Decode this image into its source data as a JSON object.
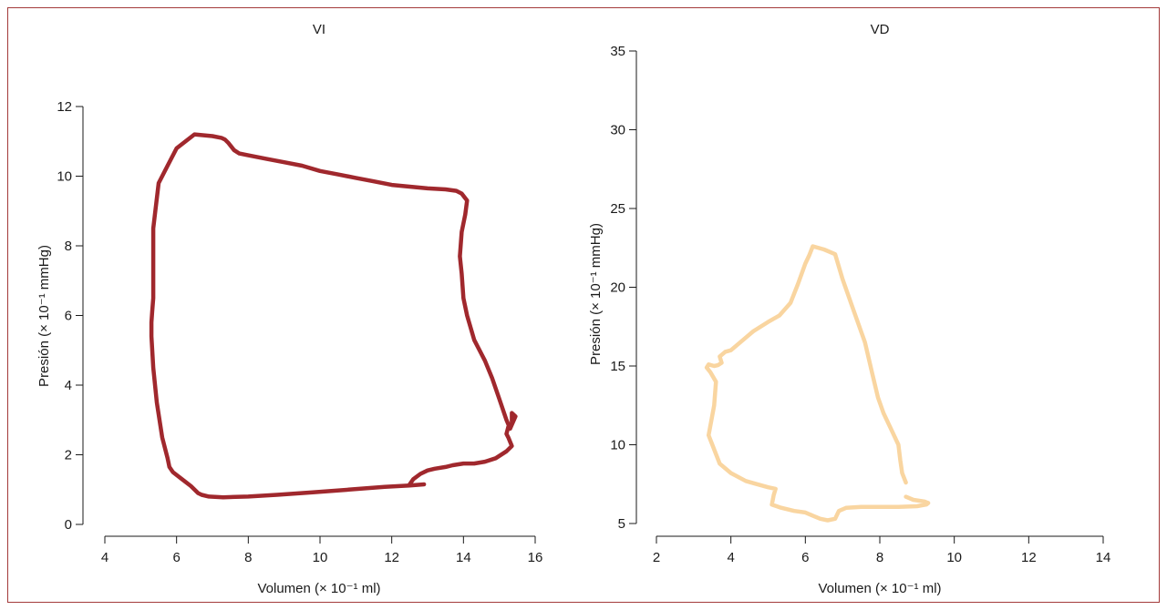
{
  "chart_data": [
    {
      "type": "line",
      "title": "VI",
      "xlabel": "Volumen (× 10⁻¹ ml)",
      "ylabel": "Presión (× 10⁻¹ mmHg)",
      "xlim": [
        4,
        16
      ],
      "ylim": [
        0,
        12
      ],
      "xticks": [
        4,
        6,
        8,
        10,
        12,
        14,
        16
      ],
      "yticks": [
        0,
        2,
        4,
        6,
        8,
        10,
        12
      ],
      "color": "#a0282d",
      "series": [
        {
          "x": [
            12.9,
            12.5,
            11.8,
            10.8,
            9.8,
            8.8,
            8.0,
            7.3,
            6.9,
            6.7,
            6.6,
            6.4,
            6.15,
            5.9,
            5.8,
            5.75,
            5.6,
            5.45,
            5.35,
            5.3,
            5.3,
            5.32,
            5.35,
            5.35,
            5.5,
            5.75,
            6.0,
            6.5,
            7.0,
            7.25,
            7.35,
            7.45,
            7.6,
            7.75,
            8.0,
            8.5,
            9.0,
            9.5,
            10.0,
            10.5,
            11.0,
            11.5,
            12.0,
            12.5,
            13.0,
            13.5,
            13.8,
            13.95,
            14.1,
            14.05,
            13.95,
            13.9,
            13.95,
            14.0,
            14.1,
            14.3,
            14.6,
            14.8,
            15.0,
            15.2,
            15.3,
            15.45,
            15.35,
            15.35,
            15.25,
            15.2,
            15.25,
            15.35,
            15.2,
            14.9,
            14.6,
            14.3,
            14.0,
            13.7,
            13.5,
            13.2,
            13.0,
            12.8,
            12.6,
            12.5
          ],
          "y": [
            1.15,
            1.12,
            1.08,
            1.0,
            0.92,
            0.85,
            0.8,
            0.78,
            0.8,
            0.85,
            0.9,
            1.1,
            1.3,
            1.5,
            1.65,
            1.9,
            2.5,
            3.5,
            4.5,
            5.4,
            5.8,
            6.1,
            6.5,
            8.5,
            9.8,
            10.3,
            10.8,
            11.2,
            11.15,
            11.1,
            11.05,
            10.95,
            10.75,
            10.65,
            10.6,
            10.5,
            10.4,
            10.3,
            10.15,
            10.05,
            9.95,
            9.85,
            9.75,
            9.7,
            9.65,
            9.62,
            9.58,
            9.5,
            9.3,
            8.9,
            8.4,
            7.7,
            7.2,
            6.5,
            6.0,
            5.3,
            4.7,
            4.2,
            3.6,
            3.0,
            2.75,
            3.1,
            3.2,
            2.9,
            2.8,
            2.6,
            2.5,
            2.25,
            2.1,
            1.9,
            1.8,
            1.75,
            1.75,
            1.7,
            1.65,
            1.6,
            1.55,
            1.45,
            1.3,
            1.15
          ]
        }
      ]
    },
    {
      "type": "line",
      "title": "VD",
      "xlabel": "Volumen (× 10⁻¹ ml)",
      "ylabel": "Presión (× 10⁻¹ mmHg)",
      "xlim": [
        2,
        14
      ],
      "ylim": [
        5,
        35
      ],
      "xticks": [
        2,
        4,
        6,
        8,
        10,
        12,
        14
      ],
      "yticks": [
        5,
        10,
        15,
        20,
        25,
        30,
        35
      ],
      "color": "#f9d5a0",
      "series": [
        {
          "x": [
            8.7,
            8.6,
            8.55,
            8.5,
            8.3,
            8.1,
            7.95,
            7.8,
            7.6,
            7.3,
            7.0,
            6.8,
            6.5,
            6.2,
            6.1,
            6.0,
            5.8,
            5.6,
            5.3,
            5.0,
            4.6,
            4.3,
            4.0,
            3.85,
            3.7,
            3.75,
            3.65,
            3.55,
            3.4,
            3.35,
            3.45,
            3.6,
            3.55,
            3.4,
            3.5,
            3.7,
            4.0,
            4.4,
            4.7,
            5.0,
            5.2,
            5.15,
            5.1,
            5.35,
            5.7,
            6.0,
            6.2,
            6.4,
            6.6,
            6.8,
            6.9,
            7.1,
            7.5,
            8.0,
            8.5,
            9.0,
            9.25,
            9.3,
            9.2,
            8.9,
            8.7
          ],
          "y": [
            7.6,
            8.2,
            9.0,
            10.0,
            11.0,
            12.0,
            13.0,
            14.5,
            16.5,
            18.5,
            20.5,
            22.1,
            22.4,
            22.6,
            22.0,
            21.5,
            20.2,
            19.0,
            18.2,
            17.8,
            17.2,
            16.6,
            16.0,
            15.9,
            15.6,
            15.2,
            15.05,
            15.0,
            15.1,
            14.9,
            14.6,
            14.0,
            12.5,
            10.6,
            10.0,
            8.8,
            8.2,
            7.7,
            7.5,
            7.3,
            7.2,
            6.8,
            6.2,
            6.0,
            5.8,
            5.7,
            5.5,
            5.3,
            5.2,
            5.3,
            5.8,
            6.0,
            6.05,
            6.05,
            6.05,
            6.1,
            6.2,
            6.3,
            6.4,
            6.5,
            6.7
          ]
        }
      ]
    }
  ]
}
